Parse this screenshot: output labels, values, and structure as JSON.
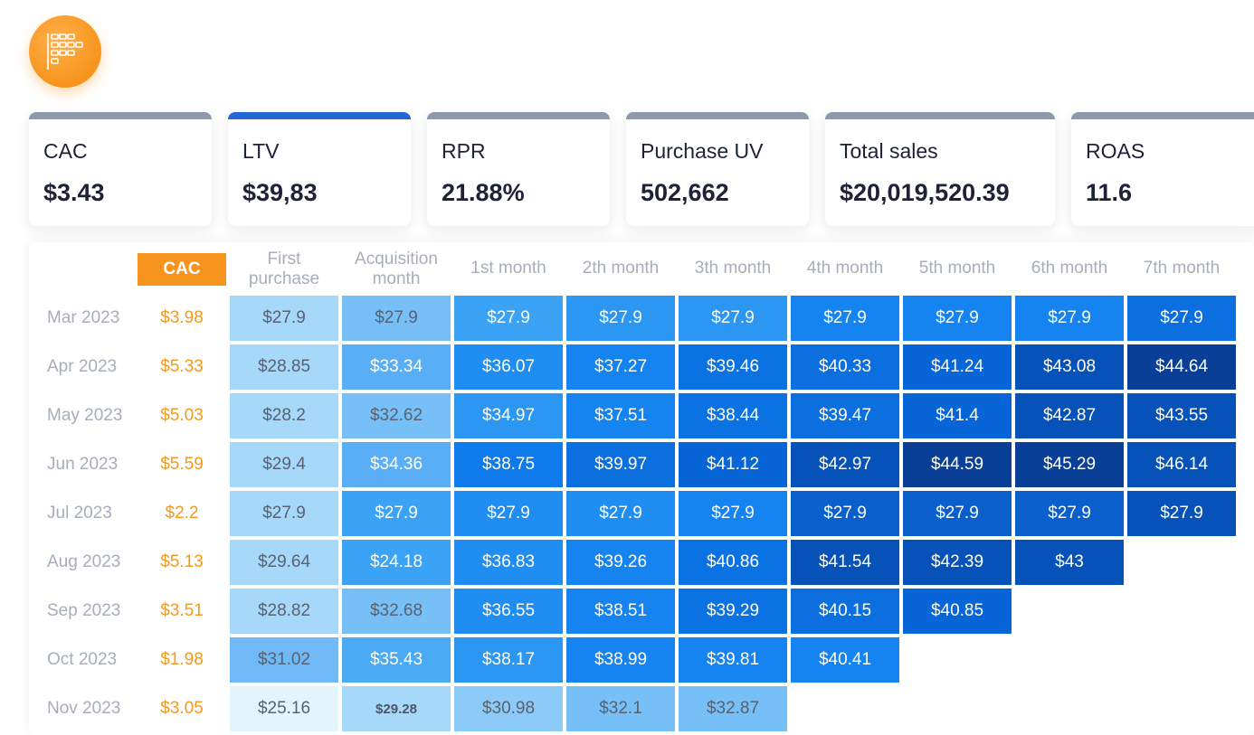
{
  "logo": {
    "icon": "grid-bars-icon"
  },
  "kpis": [
    {
      "label": "CAC",
      "value": "$3.43"
    },
    {
      "label": "LTV",
      "value": "$39,83",
      "active": true
    },
    {
      "label": "RPR",
      "value": "21.88%"
    },
    {
      "label": "Purchase UV",
      "value": "502,662"
    },
    {
      "label": "Total sales",
      "value": "$20,019,520.39"
    },
    {
      "label": "ROAS",
      "value": "11.6"
    }
  ],
  "table": {
    "cac_header": "CAC",
    "headers": [
      "First\npurchase",
      "Acquisition\nmonth",
      "1st month",
      "2th month",
      "3th month",
      "4th month",
      "5th month",
      "6th month",
      "7th month"
    ],
    "rows": [
      {
        "label": "Mar 2023",
        "cac": "$3.98",
        "cells": [
          "$27.9",
          "$27.9",
          "$27.9",
          "$27.9",
          "$27.9",
          "$27.9",
          "$27.9",
          "$27.9",
          "$27.9"
        ]
      },
      {
        "label": "Apr 2023",
        "cac": "$5.33",
        "cells": [
          "$28.85",
          "$33.34",
          "$36.07",
          "$37.27",
          "$39.46",
          "$40.33",
          "$41.24",
          "$43.08",
          "$44.64"
        ]
      },
      {
        "label": "May 2023",
        "cac": "$5.03",
        "cells": [
          "$28.2",
          "$32.62",
          "$34.97",
          "$37.51",
          "$38.44",
          "$39.47",
          "$41.4",
          "$42.87",
          "$43.55"
        ]
      },
      {
        "label": "Jun 2023",
        "cac": "$5.59",
        "cells": [
          "$29.4",
          "$34.36",
          "$38.75",
          "$39.97",
          "$41.12",
          "$42.97",
          "$44.59",
          "$45.29",
          "$46.14"
        ]
      },
      {
        "label": "Jul 2023",
        "cac": "$2.2",
        "cells": [
          "$27.9",
          "$27.9",
          "$27.9",
          "$27.9",
          "$27.9",
          "$27.9",
          "$27.9",
          "$27.9",
          "$27.9"
        ]
      },
      {
        "label": "Aug 2023",
        "cac": "$5.13",
        "cells": [
          "$29.64",
          "$24.18",
          "$36.83",
          "$39.26",
          "$40.86",
          "$41.54",
          "$42.39",
          "$43"
        ]
      },
      {
        "label": "Sep 2023",
        "cac": "$3.51",
        "cells": [
          "$28.82",
          "$32.68",
          "$36.55",
          "$38.51",
          "$39.29",
          "$40.15",
          "$40.85"
        ]
      },
      {
        "label": "Oct 2023",
        "cac": "$1.98",
        "cells": [
          "$31.02",
          "$35.43",
          "$38.17",
          "$38.99",
          "$39.81",
          "$40.41"
        ]
      },
      {
        "label": "Nov 2023",
        "cac": "$3.05",
        "cells": [
          "$25.16",
          "$29.28",
          "$30.98",
          "$32.1",
          "$32.87"
        ]
      }
    ],
    "cell_colors": [
      [
        "#a6d8fa",
        "#76c0f7",
        "#3aa3f5",
        "#2b97f3",
        "#2b97f3",
        "#1684f0",
        "#1684f0",
        "#1684f0",
        "#0b6fe0"
      ],
      [
        "#a6d8fa",
        "#5aaef5",
        "#1f8df2",
        "#1684f0",
        "#0b72e3",
        "#0b6fe0",
        "#0865d8",
        "#0752b8",
        "#0a3f98"
      ],
      [
        "#a6d8fa",
        "#76c0f7",
        "#2b97f3",
        "#1684f0",
        "#0b72e3",
        "#0b6fe0",
        "#0865d8",
        "#0752b8",
        "#0752b8"
      ],
      [
        "#a6d8fa",
        "#5aaef5",
        "#0e7aeb",
        "#0b6fe0",
        "#0865d8",
        "#0752b8",
        "#0a3f98",
        "#0a3f98",
        "#0752b8"
      ],
      [
        "#a6d8fa",
        "#3aa3f5",
        "#1f8df2",
        "#1f8df2",
        "#1684f0",
        "#0a5fcc",
        "#0a5fcc",
        "#0a5fcc",
        "#0752b8"
      ],
      [
        "#a6d8fa",
        "#3aa3f5",
        "#1f8df2",
        "#1684f0",
        "#0b72e3",
        "#0752b8",
        "#0752b8",
        "#0752b8"
      ],
      [
        "#a6d8fa",
        "#76c0f7",
        "#1f8df2",
        "#1684f0",
        "#0b72e3",
        "#0b6fe0",
        "#0865d8"
      ],
      [
        "#6eb9f6",
        "#4aaaf4",
        "#2b97f3",
        "#1684f0",
        "#1684f0",
        "#1684f0"
      ],
      [
        "#e3f4fd",
        "#a6d8fa",
        "#8ccbf8",
        "#76c0f7",
        "#76c0f7"
      ]
    ],
    "cell_text": [
      [
        "dark",
        "dark",
        "light",
        "light",
        "light",
        "light",
        "light",
        "light",
        "light"
      ],
      [
        "dark",
        "light",
        "light",
        "light",
        "light",
        "light",
        "light",
        "light",
        "light"
      ],
      [
        "dark",
        "dark",
        "light",
        "light",
        "light",
        "light",
        "light",
        "light",
        "light"
      ],
      [
        "dark",
        "light",
        "light",
        "light",
        "light",
        "light",
        "light",
        "light",
        "light"
      ],
      [
        "dark",
        "light",
        "light",
        "light",
        "light",
        "light",
        "light",
        "light",
        "light"
      ],
      [
        "dark",
        "light",
        "light",
        "light",
        "light",
        "light",
        "light",
        "light"
      ],
      [
        "dark",
        "dark",
        "light",
        "light",
        "light",
        "light",
        "light"
      ],
      [
        "dark",
        "light",
        "light",
        "light",
        "light",
        "light"
      ],
      [
        "dark",
        "small",
        "dark",
        "dark",
        "dark"
      ]
    ]
  }
}
